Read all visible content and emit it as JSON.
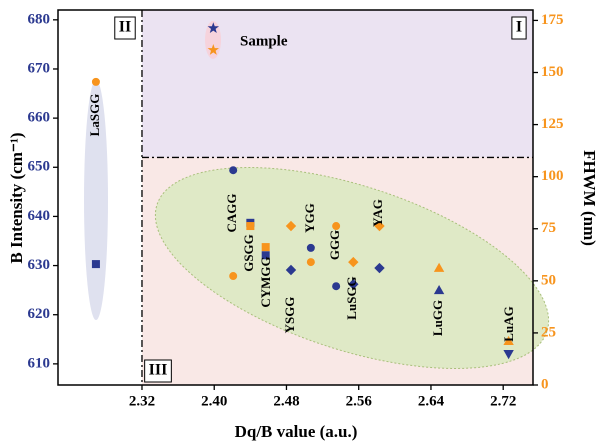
{
  "chart_data": {
    "type": "scatter",
    "x_label": "Dq/B value (a.u.)",
    "y_label": "B Intensity (cm⁻¹)",
    "y2_label": "FHWM (nm)",
    "xlim": [
      2.227,
      2.753
    ],
    "xticks": [
      2.32,
      {
        "value": 2.4,
        "label": "2.40"
      },
      2.48,
      2.56,
      2.64,
      2.72
    ],
    "ylim": [
      605.7,
      682
    ],
    "yticks": [
      610,
      620,
      630,
      640,
      650,
      660,
      670,
      680
    ],
    "y2lim": [
      0,
      180
    ],
    "y2ticks": [
      0,
      25,
      50,
      75,
      100,
      125,
      150,
      175
    ],
    "reference_lines": {
      "x": 2.32,
      "y": 652
    },
    "regions": [
      "I",
      "II",
      "III"
    ],
    "point_labels": [
      "LaSGG",
      "CAGG",
      "GSGG",
      "CYMGG",
      "YSGG",
      "YGG",
      "GGG",
      "LuSGG",
      "YAG",
      "LuGG",
      "LuAG",
      "Sample"
    ],
    "series": [
      {
        "color": "#2b3990",
        "axis": "y",
        "markers": [
          "square",
          "circle",
          "square",
          "square",
          "diamond",
          "circle",
          "circle",
          "diamond",
          "diamond",
          "triangle",
          "triangle-down",
          "star"
        ],
        "x": [
          2.269,
          2.421,
          2.44,
          2.457,
          2.485,
          2.507,
          2.535,
          2.554,
          2.583,
          2.649,
          2.726,
          2.399
        ],
        "values": [
          630.3,
          649.4,
          638.7,
          632.1,
          629.1,
          633.6,
          625.8,
          626.2,
          629.5,
          625.0,
          612.0,
          678.3
        ]
      },
      {
        "color": "#f7941d",
        "axis": "y2",
        "markers": [
          "circle",
          "circle",
          "square",
          "square",
          "diamond",
          "circle",
          "circle",
          "diamond",
          "diamond",
          "triangle",
          "triangle",
          "star"
        ],
        "x": [
          2.269,
          2.421,
          2.44,
          2.457,
          2.485,
          2.507,
          2.535,
          2.554,
          2.583,
          2.649,
          2.726,
          2.399
        ],
        "values": [
          145.5,
          52.3,
          76.3,
          66.2,
          76.3,
          59.0,
          76.3,
          59.0,
          76.3,
          56.2,
          21.1,
          160.8
        ]
      }
    ]
  }
}
